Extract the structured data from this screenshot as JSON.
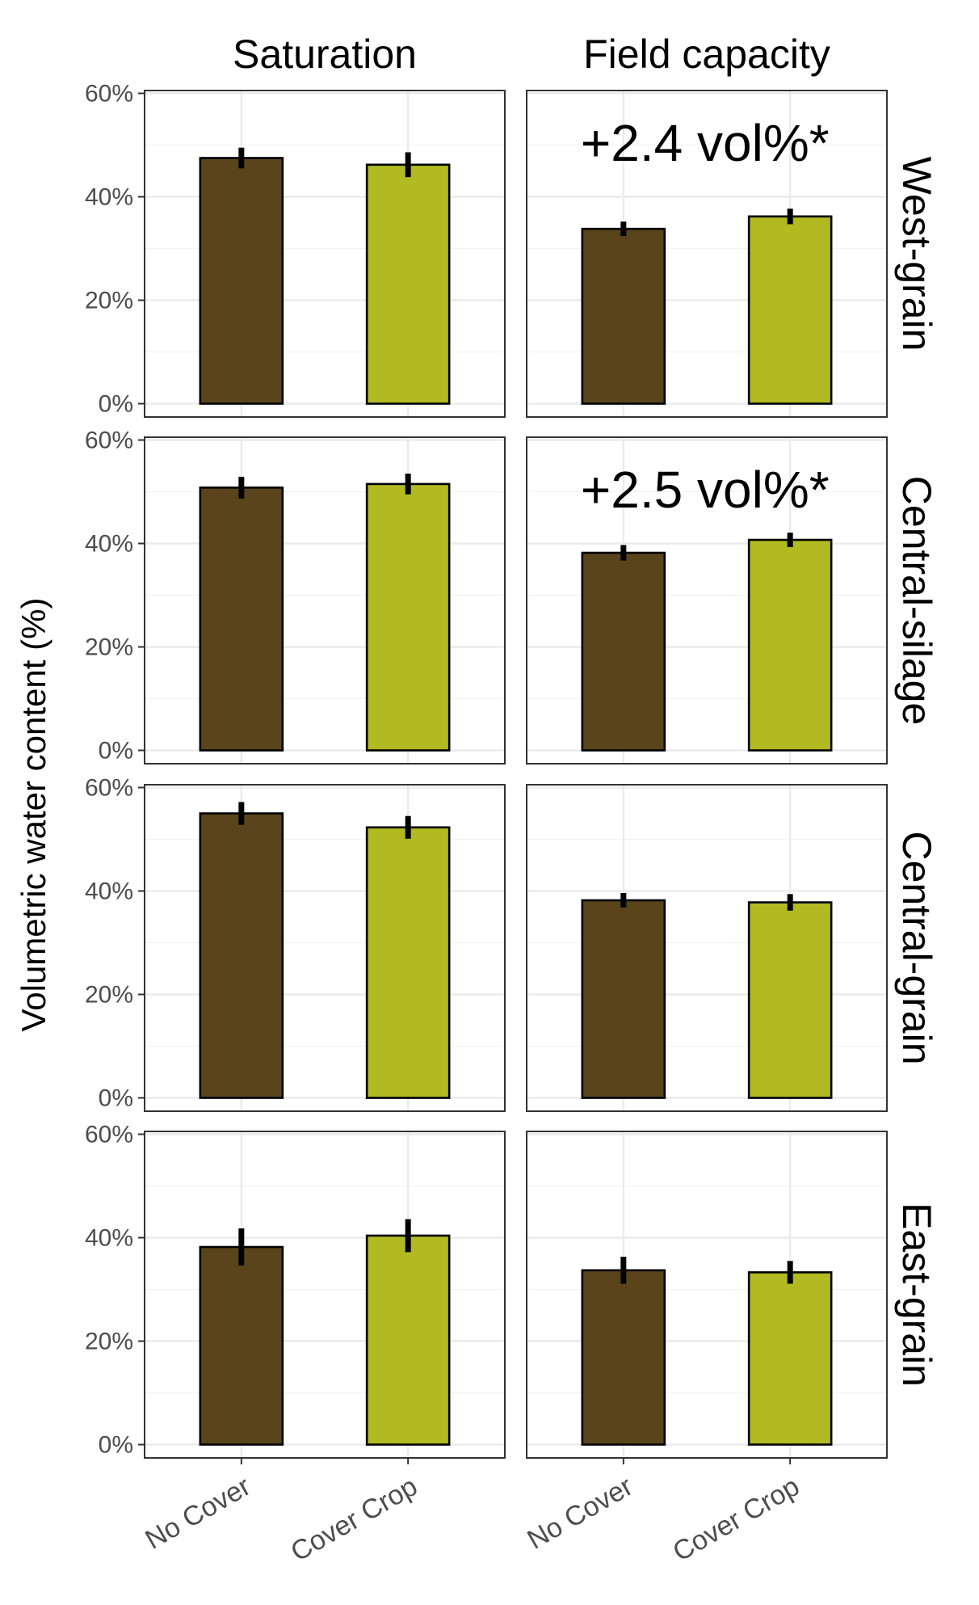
{
  "chart_data": {
    "type": "bar",
    "ylabel": "Volumetric water content (%)",
    "ylim": [
      0,
      60
    ],
    "yticks": [
      "0%",
      "20%",
      "40%",
      "60%"
    ],
    "grid": true,
    "categories": [
      "No Cover",
      "Cover Crop"
    ],
    "columns": [
      "Saturation",
      "Field capacity"
    ],
    "rows": [
      "West-grain",
      "Central-silage",
      "Central-grain",
      "East-grain"
    ],
    "colors": {
      "No Cover": "#5a441c",
      "Cover Crop": "#b2ba21"
    },
    "panels": [
      {
        "row": "West-grain",
        "column": "Saturation",
        "values": [
          47.5,
          46.2
        ],
        "errors": [
          2.0,
          2.4
        ],
        "annotation": ""
      },
      {
        "row": "West-grain",
        "column": "Field capacity",
        "values": [
          33.8,
          36.2
        ],
        "errors": [
          1.4,
          1.5
        ],
        "annotation": "+2.4 vol%*"
      },
      {
        "row": "Central-silage",
        "column": "Saturation",
        "values": [
          50.8,
          51.5
        ],
        "errors": [
          2.1,
          2.0
        ],
        "annotation": ""
      },
      {
        "row": "Central-silage",
        "column": "Field capacity",
        "values": [
          38.2,
          40.7
        ],
        "errors": [
          1.5,
          1.4
        ],
        "annotation": "+2.5 vol%*"
      },
      {
        "row": "Central-grain",
        "column": "Saturation",
        "values": [
          55.0,
          52.3
        ],
        "errors": [
          2.2,
          2.2
        ],
        "annotation": ""
      },
      {
        "row": "Central-grain",
        "column": "Field capacity",
        "values": [
          38.2,
          37.8
        ],
        "errors": [
          1.4,
          1.6
        ],
        "annotation": ""
      },
      {
        "row": "East-grain",
        "column": "Saturation",
        "values": [
          38.2,
          40.4
        ],
        "errors": [
          3.6,
          3.2
        ],
        "annotation": ""
      },
      {
        "row": "East-grain",
        "column": "Field capacity",
        "values": [
          33.7,
          33.3
        ],
        "errors": [
          2.6,
          2.2
        ],
        "annotation": ""
      }
    ]
  }
}
